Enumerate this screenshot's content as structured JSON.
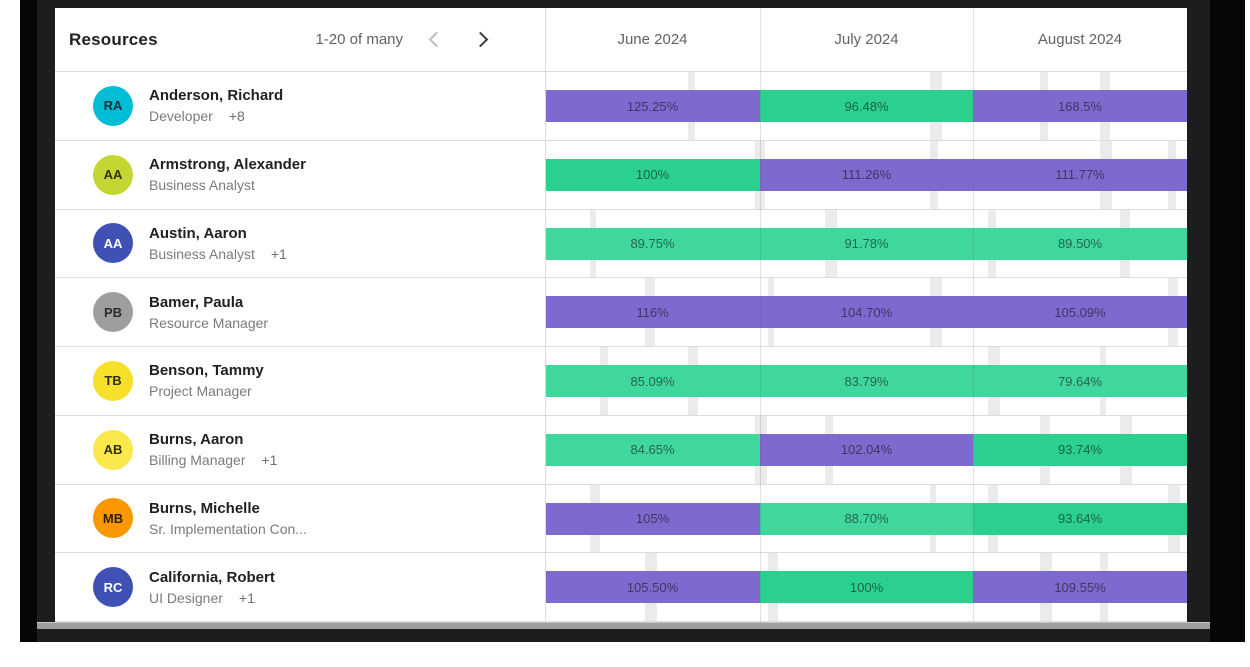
{
  "panel": {
    "title": "Resources",
    "pagination": {
      "range_label": "1-20 of many"
    }
  },
  "columns": [
    "June 2024",
    "July 2024",
    "August 2024"
  ],
  "colors": {
    "purple": "#7e6ace",
    "green": "#2bd08e",
    "green_light": "#3fd79c",
    "bar_text": "rgba(10,10,10,0.55)"
  },
  "resources": [
    {
      "initials": "RA",
      "avatar_color": "#00bcd4",
      "initials_color": "#173238",
      "name": "Anderson, Richard",
      "role": "Developer",
      "extra": "+8",
      "cells": [
        {
          "value": "125.25%",
          "color": "purple"
        },
        {
          "value": "96.48%",
          "color": "green"
        },
        {
          "value": "168.5%",
          "color": "purple"
        }
      ]
    },
    {
      "initials": "AA",
      "avatar_color": "#c3d632",
      "initials_color": "#2c330e",
      "name": "Armstrong, Alexander",
      "role": "Business Analyst",
      "extra": "",
      "cells": [
        {
          "value": "100%",
          "color": "green"
        },
        {
          "value": "111.26%",
          "color": "purple"
        },
        {
          "value": "111.77%",
          "color": "purple"
        }
      ]
    },
    {
      "initials": "AA",
      "avatar_color": "#3f51b5",
      "initials_color": "#ffffff",
      "name": "Austin, Aaron",
      "role": "Business Analyst",
      "extra": "+1",
      "cells": [
        {
          "value": "89.75%",
          "color": "green_light"
        },
        {
          "value": "91.78%",
          "color": "green_light"
        },
        {
          "value": "89.50%",
          "color": "green_light"
        }
      ]
    },
    {
      "initials": "PB",
      "avatar_color": "#9e9e9e",
      "initials_color": "#2b2b2b",
      "name": "Bamer, Paula",
      "role": "Resource Manager",
      "extra": "",
      "cells": [
        {
          "value": "116%",
          "color": "purple"
        },
        {
          "value": "104.70%",
          "color": "purple"
        },
        {
          "value": "105.09%",
          "color": "purple"
        }
      ]
    },
    {
      "initials": "TB",
      "avatar_color": "#f6e029",
      "initials_color": "#32300a",
      "name": "Benson, Tammy",
      "role": "Project Manager",
      "extra": "",
      "cells": [
        {
          "value": "85.09%",
          "color": "green_light"
        },
        {
          "value": "83.79%",
          "color": "green_light"
        },
        {
          "value": "79.64%",
          "color": "green_light"
        }
      ]
    },
    {
      "initials": "AB",
      "avatar_color": "#fbe84a",
      "initials_color": "#32300a",
      "name": "Burns, Aaron",
      "role": "Billing Manager",
      "extra": "+1",
      "cells": [
        {
          "value": "84.65%",
          "color": "green_light"
        },
        {
          "value": "102.04%",
          "color": "purple"
        },
        {
          "value": "93.74%",
          "color": "green"
        }
      ]
    },
    {
      "initials": "MB",
      "avatar_color": "#fb9701",
      "initials_color": "#332008",
      "name": "Burns, Michelle",
      "role": "Sr. Implementation Con...",
      "extra": "",
      "cells": [
        {
          "value": "105%",
          "color": "purple"
        },
        {
          "value": "88.70%",
          "color": "green_light"
        },
        {
          "value": "93.64%",
          "color": "green"
        }
      ]
    },
    {
      "initials": "RC",
      "avatar_color": "#3f51b5",
      "initials_color": "#ffffff",
      "name": "California, Robert",
      "role": "UI Designer",
      "extra": "+1",
      "cells": [
        {
          "value": "105.50%",
          "color": "purple"
        },
        {
          "value": "100%",
          "color": "green"
        },
        {
          "value": "109.55%",
          "color": "purple"
        }
      ]
    }
  ]
}
